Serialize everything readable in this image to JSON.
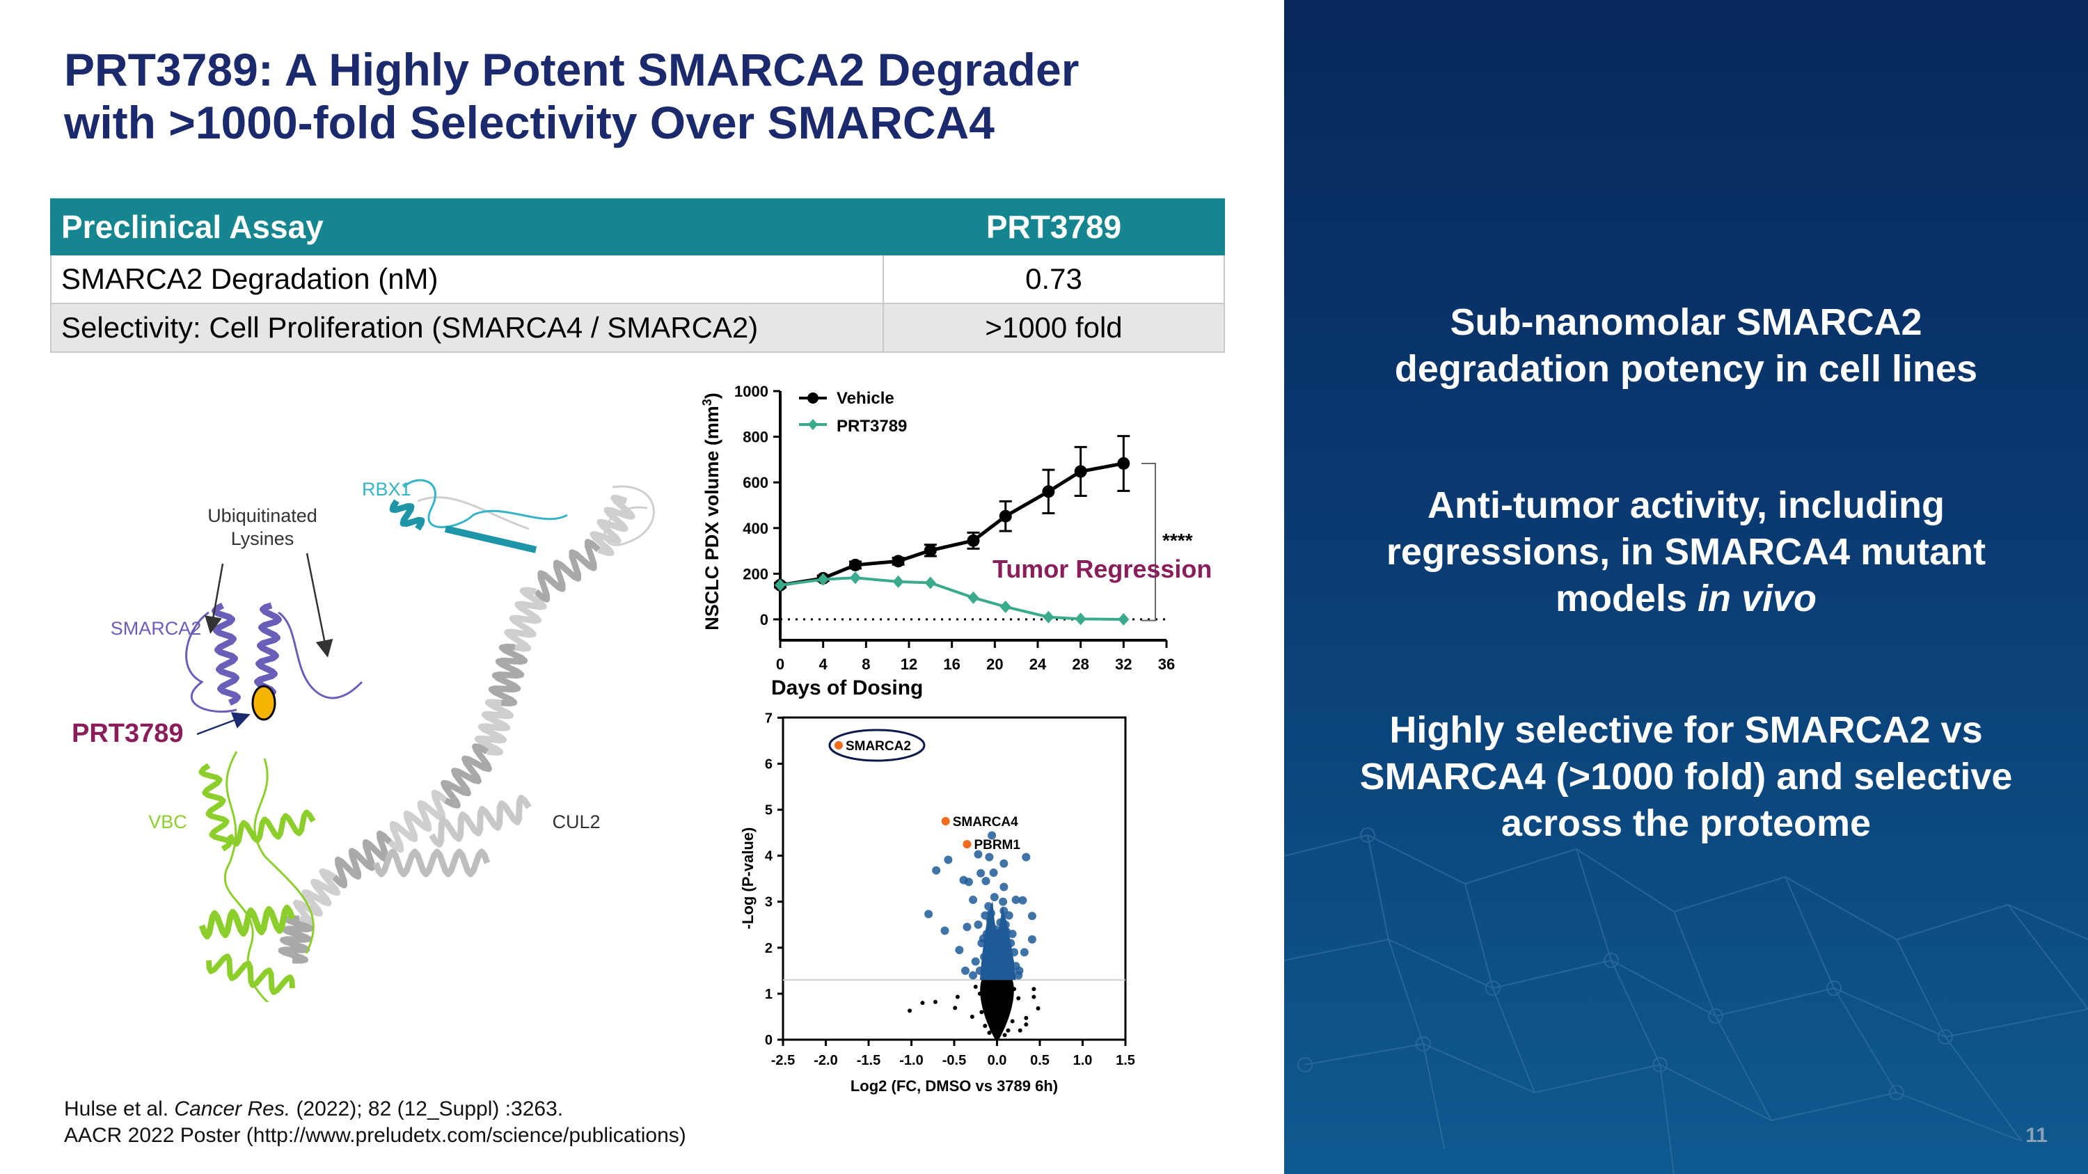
{
  "title": {
    "line1": "PRT3789: A Highly Potent SMARCA2 Degrader",
    "line2": "with >1000-fold Selectivity Over SMARCA4"
  },
  "table": {
    "headers": [
      "Preclinical Assay",
      "PRT3789"
    ],
    "rows": [
      [
        "SMARCA2 Degradation (nM)",
        "0.73"
      ],
      [
        "Selectivity: Cell Proliferation (SMARCA4 / SMARCA2)",
        ">1000 fold"
      ]
    ]
  },
  "structure": {
    "labels": {
      "rbx1": "RBX1",
      "ubiq1": "Ubiquitinated",
      "ubiq2": "Lysines",
      "smarca2": "SMARCA2",
      "prt": "PRT3789",
      "vbc": "VBC",
      "cul2": "CUL2"
    },
    "colors": {
      "smarca2": "#6a5fb8",
      "vbc": "#8ccf2c",
      "cul2": "#bdbdbd",
      "rbx1": "#35b3c7",
      "compound": "#f5b400",
      "prt_label": "#8b1e5a"
    }
  },
  "chart_data": [
    {
      "type": "line",
      "xlabel": "Days of Dosing",
      "ylabel": "NSCLC PDX volume (mm",
      "ylabel_sup": "3",
      "ylabel_close": ")",
      "xlim": [
        0,
        36
      ],
      "ylim": [
        0,
        1000
      ],
      "xticks": [
        "0",
        "4",
        "8",
        "12",
        "16",
        "20",
        "24",
        "28",
        "32",
        "36"
      ],
      "yticks": [
        "0",
        "200",
        "400",
        "600",
        "800",
        "1000"
      ],
      "legend_position": "top-left",
      "baseline_dotted": 0,
      "series": [
        {
          "name": "Vehicle",
          "color": "#000000",
          "marker": "circle",
          "x": [
            0,
            4,
            7,
            11,
            14,
            18,
            21,
            25,
            28,
            32
          ],
          "y": [
            150,
            180,
            238,
            255,
            302,
            345,
            452,
            560,
            648,
            683
          ],
          "err": [
            10,
            12,
            15,
            15,
            25,
            35,
            65,
            95,
            107,
            120
          ]
        },
        {
          "name": "PRT3789",
          "color": "#3aaa8c",
          "marker": "diamond",
          "x": [
            0,
            4,
            7,
            11,
            14,
            18,
            21,
            25,
            28,
            32
          ],
          "y": [
            150,
            175,
            182,
            165,
            160,
            95,
            55,
            10,
            2,
            0
          ]
        }
      ],
      "annotations": {
        "significance": "****",
        "label": "Tumor Regression",
        "label_color": "#8b1e5a"
      }
    },
    {
      "type": "scatter",
      "xlabel": "Log2 (FC, DMSO vs 3789 6h)",
      "ylabel": "-Log (P-value)",
      "xlim": [
        -2.5,
        1.5
      ],
      "ylim": [
        0,
        7
      ],
      "xticks": [
        "-2.5",
        "-2.0",
        "-1.5",
        "-1.0",
        "-0.5",
        "0.0",
        "0.5",
        "1.0",
        "1.5"
      ],
      "yticks": [
        "0",
        "1",
        "2",
        "3",
        "4",
        "5",
        "6",
        "7"
      ],
      "threshold": 1.3,
      "colors": {
        "significant": "#1f5a96",
        "nonsignificant": "#000000",
        "highlight": "#f26a1b"
      },
      "highlighted": [
        {
          "name": "SMARCA2",
          "x": -1.85,
          "y": 6.4,
          "circled": true
        },
        {
          "name": "SMARCA4",
          "x": -0.6,
          "y": 4.75
        },
        {
          "name": "PBRM1",
          "x": -0.35,
          "y": 4.25
        }
      ],
      "significant_points": [
        [
          -0.71,
          3.68
        ],
        [
          -0.57,
          3.91
        ],
        [
          -0.8,
          2.73
        ],
        [
          -0.61,
          2.37
        ],
        [
          -0.44,
          1.95
        ],
        [
          -0.06,
          4.44
        ],
        [
          -0.22,
          4.03
        ],
        [
          -0.09,
          3.97
        ],
        [
          0.08,
          3.83
        ],
        [
          0.34,
          3.97
        ],
        [
          0.41,
          2.69
        ],
        [
          0.41,
          2.18
        ],
        [
          0.32,
          1.9
        ],
        [
          0.3,
          3.03
        ],
        [
          0.22,
          3.04
        ],
        [
          0.08,
          3.32
        ],
        [
          -0.39,
          3.47
        ],
        [
          -0.33,
          3.43
        ],
        [
          -0.28,
          3.04
        ],
        [
          -0.19,
          3.62
        ],
        [
          -0.04,
          3.63
        ],
        [
          -0.13,
          3.45
        ],
        [
          -0.35,
          2.45
        ],
        [
          -0.37,
          1.5
        ],
        [
          0.26,
          1.5
        ],
        [
          -0.1,
          2.9
        ],
        [
          -0.08,
          2.6
        ],
        [
          -0.12,
          2.3
        ],
        [
          -0.06,
          2.0
        ],
        [
          -0.15,
          1.8
        ],
        [
          -0.1,
          1.6
        ],
        [
          -0.05,
          1.45
        ],
        [
          -0.2,
          1.5
        ],
        [
          -0.18,
          2.1
        ],
        [
          -0.14,
          2.7
        ],
        [
          -0.03,
          3.1
        ],
        [
          -0.09,
          1.9
        ],
        [
          -0.22,
          2.5
        ],
        [
          -0.25,
          1.7
        ],
        [
          -0.12,
          1.4
        ],
        [
          0.08,
          2.8
        ],
        [
          0.1,
          2.5
        ],
        [
          0.06,
          2.2
        ],
        [
          0.12,
          1.9
        ],
        [
          0.05,
          1.6
        ],
        [
          0.15,
          1.7
        ],
        [
          0.1,
          1.45
        ],
        [
          0.18,
          2.3
        ],
        [
          0.2,
          1.9
        ],
        [
          0.03,
          1.4
        ],
        [
          0.14,
          2.7
        ],
        [
          0.22,
          1.6
        ],
        [
          0.07,
          3.0
        ],
        [
          0.0,
          1.8
        ],
        [
          -0.02,
          2.4
        ],
        [
          0.25,
          1.4
        ],
        [
          -0.28,
          1.4
        ],
        [
          0.16,
          2.1
        ],
        [
          -0.16,
          2.2
        ],
        [
          -0.07,
          2.75
        ],
        [
          0.04,
          2.55
        ],
        [
          -0.11,
          2.15
        ],
        [
          0.11,
          2.35
        ]
      ],
      "nonsignificant_points": [
        [
          -1.02,
          0.63
        ],
        [
          -0.87,
          0.8
        ],
        [
          -0.72,
          0.82
        ],
        [
          -0.49,
          0.69
        ],
        [
          -0.46,
          0.93
        ],
        [
          0.43,
          1.1
        ],
        [
          0.43,
          0.93
        ],
        [
          0.48,
          0.68
        ],
        [
          0.34,
          0.47
        ],
        [
          0.34,
          0.33
        ],
        [
          -0.29,
          0.5
        ],
        [
          0.27,
          0.2
        ],
        [
          0,
          0.1
        ],
        [
          -0.02,
          0.3
        ],
        [
          0.03,
          0.5
        ],
        [
          -0.05,
          0.7
        ],
        [
          0.05,
          0.9
        ],
        [
          -0.08,
          1.1
        ],
        [
          0.08,
          1.2
        ],
        [
          -0.1,
          0.5
        ],
        [
          0.1,
          0.6
        ],
        [
          -0.12,
          0.9
        ],
        [
          0.12,
          1.0
        ],
        [
          -0.15,
          1.2
        ],
        [
          0.15,
          0.8
        ],
        [
          -0.18,
          0.6
        ],
        [
          0.18,
          0.4
        ],
        [
          -0.2,
          1.0
        ],
        [
          0.2,
          1.1
        ],
        [
          -0.06,
          0.2
        ],
        [
          0.06,
          0.3
        ],
        [
          -0.03,
          1.25
        ],
        [
          0.02,
          0.75
        ],
        [
          -0.25,
          1.15
        ],
        [
          0.25,
          0.9
        ],
        [
          -0.14,
          0.3
        ],
        [
          0.13,
          0.2
        ],
        [
          0.0,
          0.4
        ],
        [
          -0.04,
          0.95
        ],
        [
          0.04,
          1.05
        ],
        [
          -0.09,
          0.15
        ],
        [
          0.09,
          0.1
        ],
        [
          0.0,
          0.65
        ]
      ]
    }
  ],
  "bullets": [
    {
      "text": "Sub-nanomolar SMARCA2 degradation potency in cell lines"
    },
    {
      "text": "Anti-tumor activity, including regressions, in SMARCA4 mutant models ",
      "italic": "in vivo"
    },
    {
      "text": "Highly selective for SMARCA2 vs SMARCA4 (>1000 fold) and selective across the proteome"
    }
  ],
  "footer": {
    "ref_author": "Hulse et al. ",
    "ref_journal": "Cancer Res.",
    "ref_rest": " (2022); 82 (12_Suppl) :3263.",
    "poster": "AACR 2022 Poster (http://www.preludetx.com/science/publications)"
  },
  "page_number": "11"
}
